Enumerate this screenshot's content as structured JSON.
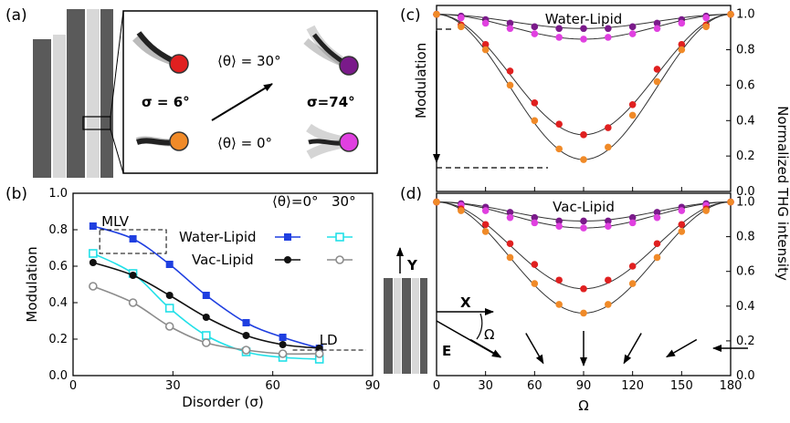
{
  "panels": {
    "a": {
      "label": "(a)",
      "sigma_small": "σ = 6°",
      "sigma_large": "σ=74°",
      "theta_30": "⟨θ⟩ = 30°",
      "theta_0": "⟨θ⟩ = 0°"
    },
    "b": {
      "label": "(b)",
      "legend_header_0": "⟨θ⟩=0°",
      "legend_header_30": "30°",
      "mlv": "MLV",
      "ld": "LD"
    },
    "c": {
      "label": "(c)",
      "title": "Water-Lipid",
      "modulation_arrow_label": "Modulation"
    },
    "d": {
      "label": "(d)",
      "title": "Vac-Lipid",
      "axis_y": "Y",
      "axis_x": "X",
      "field_e": "E",
      "angle": "Ω"
    },
    "right_axis_label": "Normalized THG intensity"
  },
  "colors": {
    "water_0": "#1f3fe0",
    "water_30": "#22e0e8",
    "vac_0": "#111111",
    "vac_30": "#8c8c8c",
    "red": "#e02020",
    "orange": "#f08a28",
    "purple": "#7a1a8a",
    "magenta": "#e040e0"
  },
  "chart_data": [
    {
      "id": "b",
      "type": "line",
      "xlabel": "Disorder (σ)",
      "ylabel": "Modulation",
      "xlim": [
        0,
        90
      ],
      "ylim": [
        0,
        1.0
      ],
      "xticks": [
        0,
        30,
        60,
        90
      ],
      "yticks": [
        0.0,
        0.2,
        0.4,
        0.6,
        0.8,
        1.0
      ],
      "x": [
        6,
        18,
        29,
        40,
        52,
        63,
        74
      ],
      "series": [
        {
          "name": "Water-Lipid",
          "group": "0°",
          "marker": "square",
          "color_key": "water_0",
          "values": [
            0.82,
            0.75,
            0.61,
            0.44,
            0.29,
            0.21,
            0.15
          ]
        },
        {
          "name": "Water-Lipid",
          "group": "30°",
          "marker": "open-square",
          "color_key": "water_30",
          "values": [
            0.67,
            0.56,
            0.37,
            0.22,
            0.13,
            0.1,
            0.09
          ]
        },
        {
          "name": "Vac-Lipid",
          "group": "0°",
          "marker": "circle",
          "color_key": "vac_0",
          "values": [
            0.62,
            0.55,
            0.44,
            0.32,
            0.22,
            0.17,
            0.15
          ]
        },
        {
          "name": "Vac-Lipid",
          "group": "30°",
          "marker": "open-circle",
          "color_key": "vac_30",
          "values": [
            0.49,
            0.4,
            0.27,
            0.18,
            0.14,
            0.12,
            0.12
          ]
        }
      ],
      "annotations": {
        "mlv_box_x": [
          8,
          28
        ],
        "mlv_box_y": [
          0.67,
          0.8
        ],
        "ld_level": 0.14
      }
    },
    {
      "id": "c",
      "type": "scatter",
      "title": "Water-Lipid",
      "ylabel_right": "Normalized THG intensity",
      "xlim": [
        0,
        180
      ],
      "ylim": [
        0,
        1.05
      ],
      "yticks": [
        0.0,
        0.2,
        0.4,
        0.6,
        0.8,
        1.0
      ],
      "x": [
        0,
        15,
        30,
        45,
        60,
        75,
        90,
        105,
        120,
        135,
        150,
        165,
        180
      ],
      "series": [
        {
          "color_key": "purple",
          "values": [
            1.0,
            0.99,
            0.97,
            0.95,
            0.93,
            0.92,
            0.92,
            0.92,
            0.93,
            0.95,
            0.97,
            0.99,
            1.0
          ]
        },
        {
          "color_key": "magenta",
          "values": [
            1.0,
            0.98,
            0.95,
            0.92,
            0.89,
            0.87,
            0.86,
            0.87,
            0.89,
            0.92,
            0.95,
            0.98,
            1.0
          ]
        },
        {
          "color_key": "red",
          "values": [
            1.0,
            0.94,
            0.83,
            0.68,
            0.5,
            0.38,
            0.32,
            0.36,
            0.49,
            0.69,
            0.83,
            0.94,
            1.0
          ]
        },
        {
          "color_key": "orange",
          "values": [
            1.0,
            0.93,
            0.8,
            0.6,
            0.4,
            0.24,
            0.18,
            0.25,
            0.43,
            0.62,
            0.8,
            0.93,
            1.0
          ]
        }
      ],
      "fits": [
        {
          "min": 0.92
        },
        {
          "min": 0.86
        },
        {
          "min": 0.32
        },
        {
          "min": 0.18
        }
      ]
    },
    {
      "id": "d",
      "type": "scatter",
      "title": "Vac-Lipid",
      "xlabel": "Ω",
      "xlim": [
        0,
        180
      ],
      "ylim": [
        0,
        1.05
      ],
      "xticks": [
        0,
        30,
        60,
        90,
        120,
        150,
        180
      ],
      "yticks": [
        0.0,
        0.2,
        0.4,
        0.6,
        0.8,
        1.0
      ],
      "x": [
        0,
        15,
        30,
        45,
        60,
        75,
        90,
        105,
        120,
        135,
        150,
        165,
        180
      ],
      "series": [
        {
          "color_key": "purple",
          "values": [
            1.0,
            0.99,
            0.97,
            0.94,
            0.91,
            0.89,
            0.89,
            0.89,
            0.91,
            0.94,
            0.97,
            0.99,
            1.0
          ]
        },
        {
          "color_key": "magenta",
          "values": [
            1.0,
            0.98,
            0.95,
            0.91,
            0.88,
            0.86,
            0.85,
            0.86,
            0.88,
            0.91,
            0.95,
            0.98,
            1.0
          ]
        },
        {
          "color_key": "red",
          "values": [
            1.0,
            0.96,
            0.87,
            0.76,
            0.64,
            0.55,
            0.5,
            0.55,
            0.63,
            0.76,
            0.87,
            0.96,
            1.0
          ]
        },
        {
          "color_key": "orange",
          "values": [
            1.0,
            0.95,
            0.83,
            0.68,
            0.53,
            0.41,
            0.36,
            0.41,
            0.53,
            0.68,
            0.83,
            0.95,
            1.0
          ]
        }
      ],
      "fits": [
        {
          "min": 0.89
        },
        {
          "min": 0.85
        },
        {
          "min": 0.5
        },
        {
          "min": 0.36
        }
      ],
      "field_arrows_deg": [
        30,
        60,
        90,
        120,
        150,
        180
      ]
    }
  ]
}
